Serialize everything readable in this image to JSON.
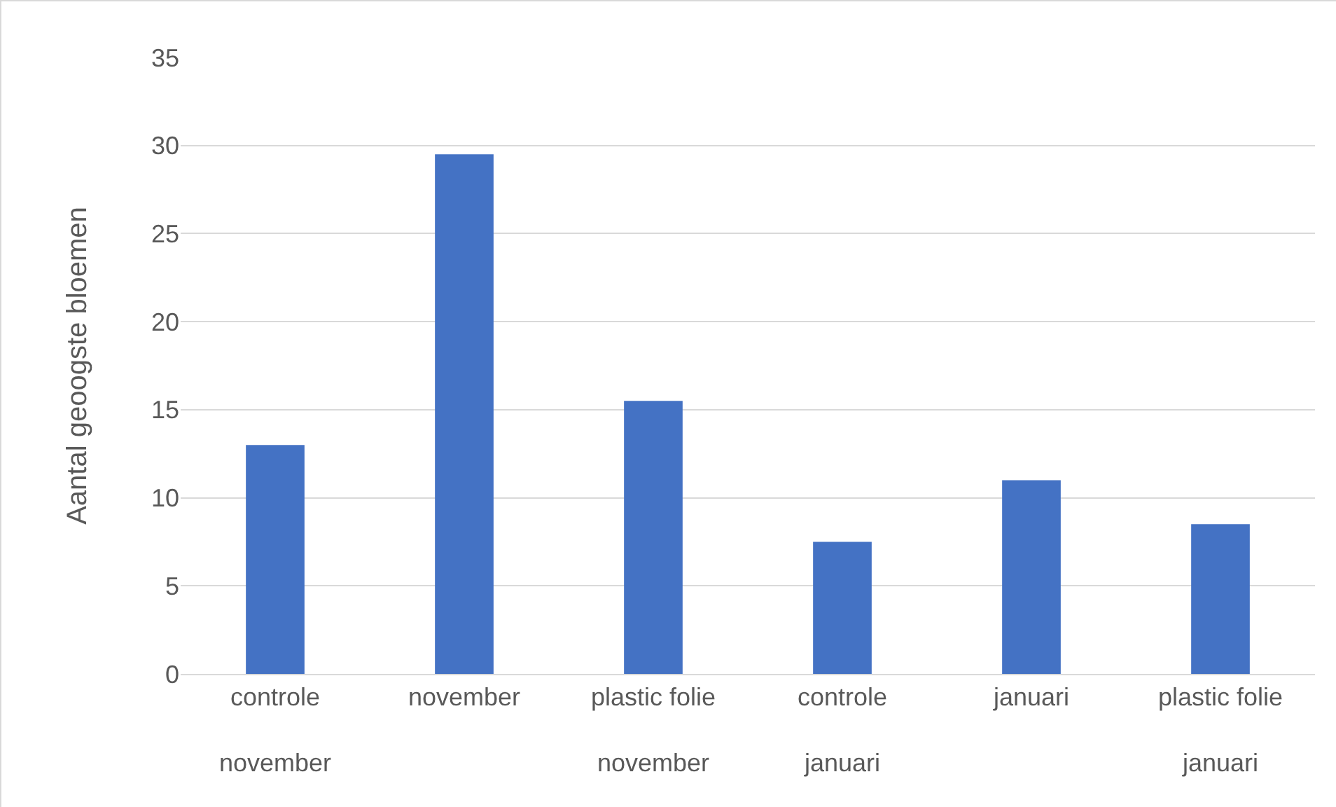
{
  "chart_data": {
    "type": "bar",
    "ylabel": "Aantal geoogste bloemen",
    "categories": [
      "controle\nnovember",
      "november",
      "plastic folie\nnovember",
      "controle\njanuari",
      "januari",
      "plastic folie\njanuari"
    ],
    "values": [
      13,
      29.5,
      15.5,
      7.5,
      11,
      8.5
    ],
    "color": "#4472c4",
    "ylim": [
      0,
      35
    ],
    "yticks": [
      0,
      5,
      10,
      15,
      20,
      25,
      30,
      35
    ],
    "grid": "y"
  }
}
